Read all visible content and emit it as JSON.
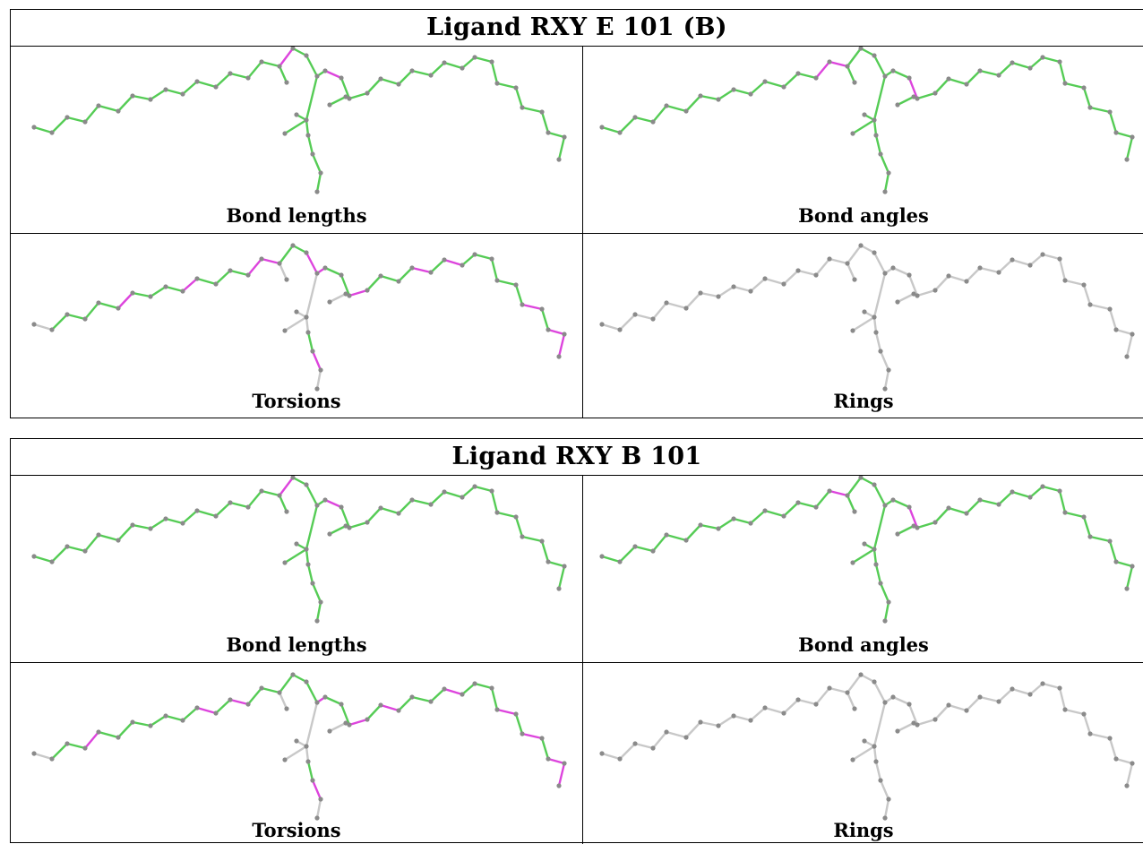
{
  "panels": [
    {
      "title": "Ligand RXY E 101 (B)",
      "cells": [
        {
          "label": "Bond lengths",
          "scheme": "lengthsA"
        },
        {
          "label": "Bond angles",
          "scheme": "anglesA"
        },
        {
          "label": "Torsions",
          "scheme": "torsionsA"
        },
        {
          "label": "Rings",
          "scheme": "rings"
        }
      ]
    },
    {
      "title": "Ligand RXY B 101",
      "cells": [
        {
          "label": "Bond lengths",
          "scheme": "lengthsB"
        },
        {
          "label": "Bond angles",
          "scheme": "anglesB"
        },
        {
          "label": "Torsions",
          "scheme": "torsionsB"
        },
        {
          "label": "Rings",
          "scheme": "rings"
        }
      ]
    }
  ],
  "colors": {
    "ok": "#55cc55",
    "outlier": "#dd44dd",
    "neutral": "#c8c8c8",
    "atom": "#8a8a8a",
    "border": "#000000"
  }
}
